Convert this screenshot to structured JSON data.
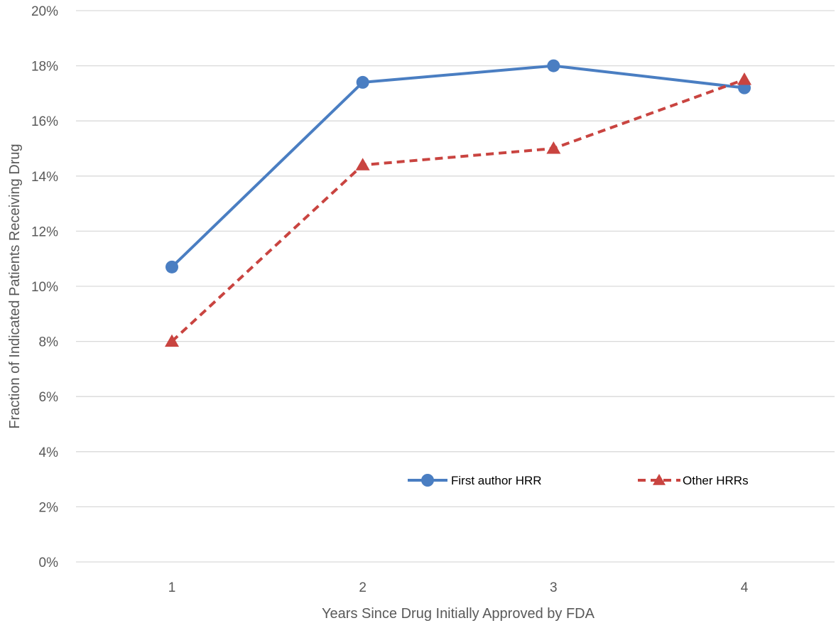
{
  "chart_data": {
    "type": "line",
    "title": "",
    "xlabel": "Years Since Drug Initially Approved by FDA",
    "ylabel": "Fraction of Indicated Patients Receiving Drug",
    "x": [
      1,
      2,
      3,
      4
    ],
    "x_tick_labels": [
      "1",
      "2",
      "3",
      "4"
    ],
    "ylim": [
      0,
      20
    ],
    "y_tick_values": [
      0,
      2,
      4,
      6,
      8,
      10,
      12,
      14,
      16,
      18,
      20
    ],
    "y_tick_labels": [
      "0%",
      "2%",
      "4%",
      "6%",
      "8%",
      "10%",
      "12%",
      "14%",
      "16%",
      "18%",
      "20%"
    ],
    "y_unit": "percent",
    "grid": "horizontal",
    "legend_position": "bottom-right",
    "series": [
      {
        "name": "First author HRR",
        "values": [
          10.7,
          17.4,
          18.0,
          17.2
        ],
        "color": "#4A7EC2",
        "line_style": "solid",
        "marker": "circle"
      },
      {
        "name": "Other HRRs",
        "values": [
          8.0,
          14.4,
          15.0,
          17.5
        ],
        "color": "#C94440",
        "line_style": "dashed",
        "marker": "triangle"
      }
    ]
  }
}
